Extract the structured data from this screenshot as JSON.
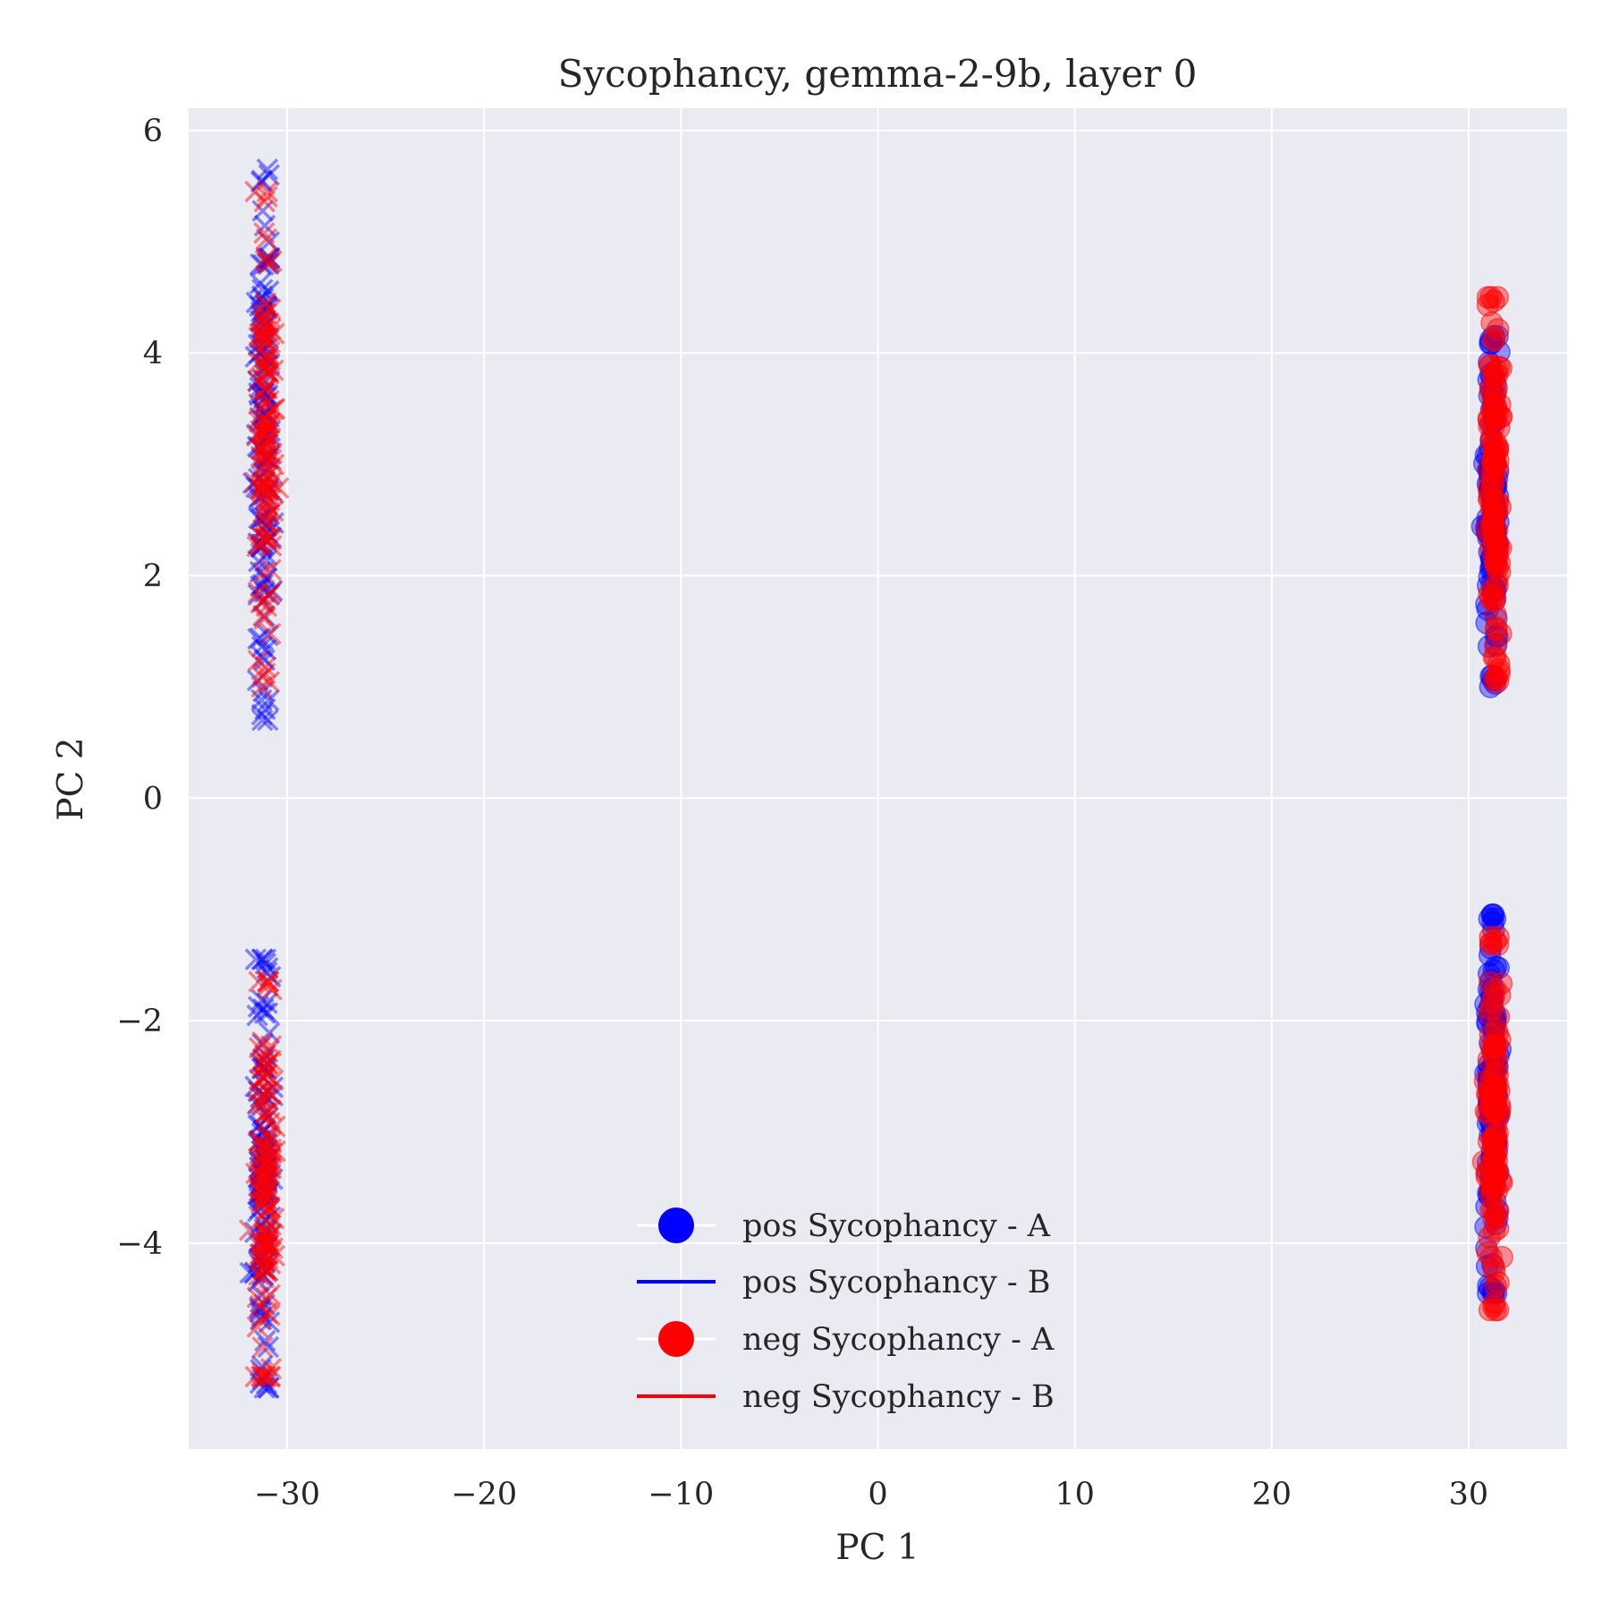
{
  "chart_data": {
    "type": "scatter",
    "title": "Sycophancy, gemma-2-9b, layer 0",
    "xlabel": "PC 1",
    "ylabel": "PC 2",
    "xlim": [
      -35,
      35
    ],
    "ylim": [
      -5.85,
      6.2
    ],
    "xticks": [
      -30,
      -20,
      -10,
      0,
      10,
      20,
      30
    ],
    "yticks": [
      -4,
      -2,
      0,
      2,
      4,
      6
    ],
    "xtick_labels": [
      "−30",
      "−20",
      "−10",
      "0",
      "10",
      "20",
      "30"
    ],
    "ytick_labels": [
      "−4",
      "−2",
      "0",
      "2",
      "4",
      "6"
    ],
    "grid": true,
    "legend_position": "lower-center",
    "colors": {
      "background": "#eaeaf2",
      "pos": "#0000ff",
      "neg": "#ff0000"
    },
    "series": [
      {
        "name": "pos Sycophancy - A",
        "marker": "circle",
        "color": "#0000ff",
        "clusters": [
          {
            "x_center": 31.2,
            "x_spread": 0.35,
            "y_range": [
              1.0,
              4.15
            ],
            "n": 120
          },
          {
            "x_center": 31.2,
            "x_spread": 0.35,
            "y_range": [
              -4.45,
              -1.05
            ],
            "n": 120
          }
        ]
      },
      {
        "name": "pos Sycophancy - B",
        "marker": "x",
        "color": "#0000ff",
        "clusters": [
          {
            "x_center": -31.2,
            "x_spread": 0.4,
            "y_range": [
              0.7,
              5.65
            ],
            "n": 140
          },
          {
            "x_center": -31.2,
            "x_spread": 0.4,
            "y_range": [
              -5.3,
              -1.45
            ],
            "n": 140
          }
        ]
      },
      {
        "name": "neg Sycophancy - A",
        "marker": "circle",
        "color": "#ff0000",
        "clusters": [
          {
            "x_center": 31.3,
            "x_spread": 0.35,
            "y_range": [
              1.05,
              4.5
            ],
            "n": 120
          },
          {
            "x_center": 31.3,
            "x_spread": 0.35,
            "y_range": [
              -4.6,
              -1.25
            ],
            "n": 120
          }
        ]
      },
      {
        "name": "neg Sycophancy - B",
        "marker": "x",
        "color": "#ff0000",
        "clusters": [
          {
            "x_center": -31.1,
            "x_spread": 0.4,
            "y_range": [
              1.0,
              5.45
            ],
            "n": 140
          },
          {
            "x_center": -31.1,
            "x_spread": 0.4,
            "y_range": [
              -5.2,
              -1.65
            ],
            "n": 140
          }
        ]
      }
    ]
  }
}
